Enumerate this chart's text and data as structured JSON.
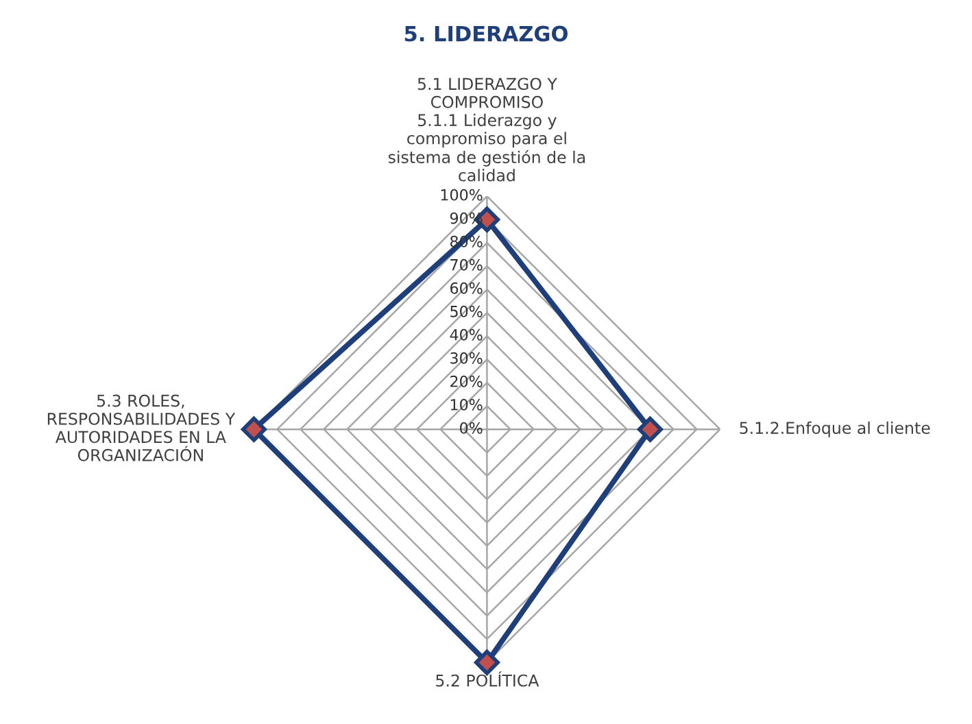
{
  "chart_data": {
    "type": "radar",
    "title": "5. LIDERAZGO",
    "categories": [
      "5.1 LIDERAZGO Y\nCOMPROMISO\n5.1.1 Liderazgo y\ncompromiso para el\nsistema de gestión de la\ncalidad",
      "5.1.2.Enfoque al cliente",
      "5.2 POLÍTICA",
      "5.3 ROLES,\nRESPONSABILIDADES Y\nAUTORIDADES EN LA\nORGANIZACIÓN"
    ],
    "series": [
      {
        "color": "#1f3f7a",
        "values": [
          90,
          70,
          100,
          100
        ]
      }
    ],
    "ylim": [
      0,
      100
    ],
    "yticks": [
      {
        "value": 0,
        "label": "0%"
      },
      {
        "value": 10,
        "label": "10%"
      },
      {
        "value": 20,
        "label": "20%"
      },
      {
        "value": 30,
        "label": "30%"
      },
      {
        "value": 40,
        "label": "40%"
      },
      {
        "value": 50,
        "label": "50%"
      },
      {
        "value": 60,
        "label": "60%"
      },
      {
        "value": 70,
        "label": "70%"
      },
      {
        "value": 80,
        "label": "80%"
      },
      {
        "value": 90,
        "label": "90%"
      },
      {
        "value": 100,
        "label": "100%"
      }
    ],
    "grid": true,
    "marker": "diamond",
    "line_style": "solid"
  }
}
